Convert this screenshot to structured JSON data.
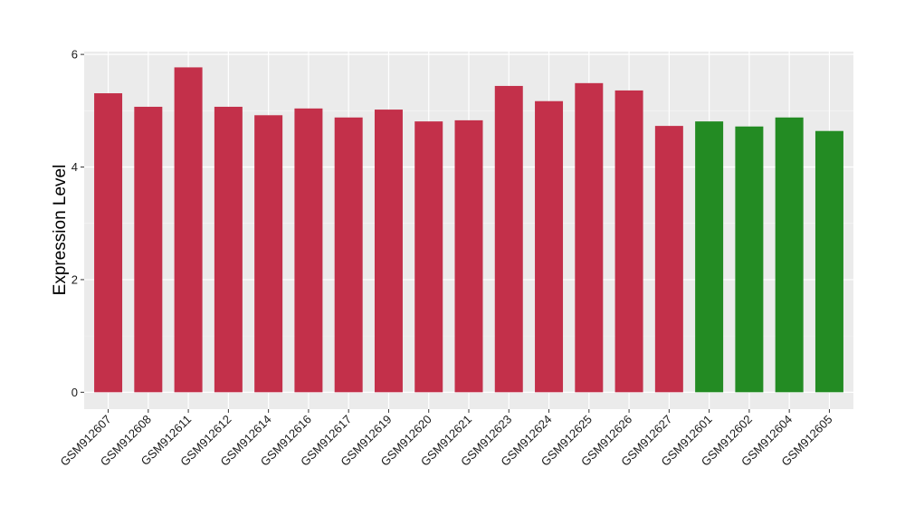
{
  "chart_data": {
    "type": "bar",
    "ylabel": "Expression Level",
    "xlabel": "",
    "ylim": [
      -0.3,
      6.05
    ],
    "yticks": [
      0,
      2,
      4,
      6
    ],
    "grid": true,
    "panel_background": "#ebebeb",
    "categories": [
      "GSM912607",
      "GSM912608",
      "GSM912611",
      "GSM912612",
      "GSM912614",
      "GSM912616",
      "GSM912617",
      "GSM912619",
      "GSM912620",
      "GSM912621",
      "GSM912623",
      "GSM912624",
      "GSM912625",
      "GSM912626",
      "GSM912627",
      "GSM912601",
      "GSM912602",
      "GSM912604",
      "GSM912605"
    ],
    "values": [
      5.31,
      5.07,
      5.77,
      5.07,
      4.92,
      5.04,
      4.88,
      5.02,
      4.81,
      4.83,
      5.44,
      5.17,
      5.49,
      5.36,
      4.73,
      4.81,
      4.72,
      4.88,
      4.64
    ],
    "colors": [
      "#c3304a",
      "#c3304a",
      "#c3304a",
      "#c3304a",
      "#c3304a",
      "#c3304a",
      "#c3304a",
      "#c3304a",
      "#c3304a",
      "#c3304a",
      "#c3304a",
      "#c3304a",
      "#c3304a",
      "#c3304a",
      "#c3304a",
      "#238b23",
      "#238b23",
      "#238b23",
      "#238b23"
    ]
  }
}
